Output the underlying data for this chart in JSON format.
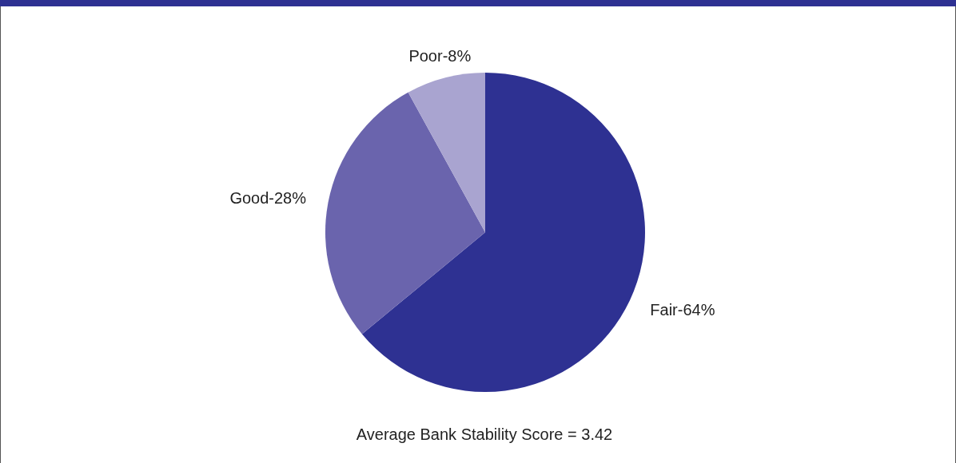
{
  "chart_data": {
    "type": "pie",
    "categories": [
      "Fair-64%",
      "Good-28%",
      "Poor-8%"
    ],
    "values": [
      64,
      28,
      8
    ],
    "colors": [
      "#2e3192",
      "#6a64ad",
      "#a9a4d0"
    ],
    "annotations": [
      "Average Bank Stability Score = 3.42"
    ]
  }
}
